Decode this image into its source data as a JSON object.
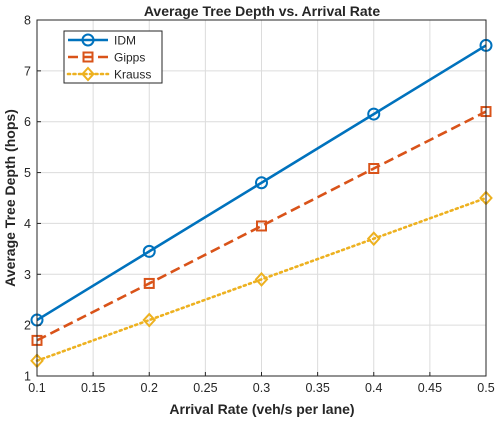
{
  "chart_data": {
    "type": "line",
    "title": "Average Tree Depth vs. Arrival Rate",
    "xlabel": "Arrival Rate (veh/s per lane)",
    "ylabel": "Average Tree Depth (hops)",
    "xlim": [
      0.1,
      0.5
    ],
    "ylim": [
      1,
      8
    ],
    "xticks": [
      "0.1",
      "0.15",
      "0.2",
      "0.25",
      "0.3",
      "0.35",
      "0.4",
      "0.45",
      "0.5"
    ],
    "yticks": [
      "1",
      "2",
      "3",
      "4",
      "5",
      "6",
      "7",
      "8"
    ],
    "grid": true,
    "legend_position": "top-left",
    "x": [
      0.1,
      0.2,
      0.3,
      0.4,
      0.5
    ],
    "series": [
      {
        "name": "IDM",
        "values": [
          2.1,
          3.45,
          4.8,
          6.15,
          7.5
        ],
        "color": "#0072BD",
        "line": "solid",
        "marker": "circle"
      },
      {
        "name": "Gipps",
        "values": [
          1.7,
          2.82,
          3.95,
          5.08,
          6.2
        ],
        "color": "#D95319",
        "line": "dashed",
        "marker": "square"
      },
      {
        "name": "Krauss",
        "values": [
          1.3,
          2.1,
          2.9,
          3.7,
          4.5
        ],
        "color": "#EDB120",
        "line": "dotted",
        "marker": "diamond"
      }
    ]
  }
}
